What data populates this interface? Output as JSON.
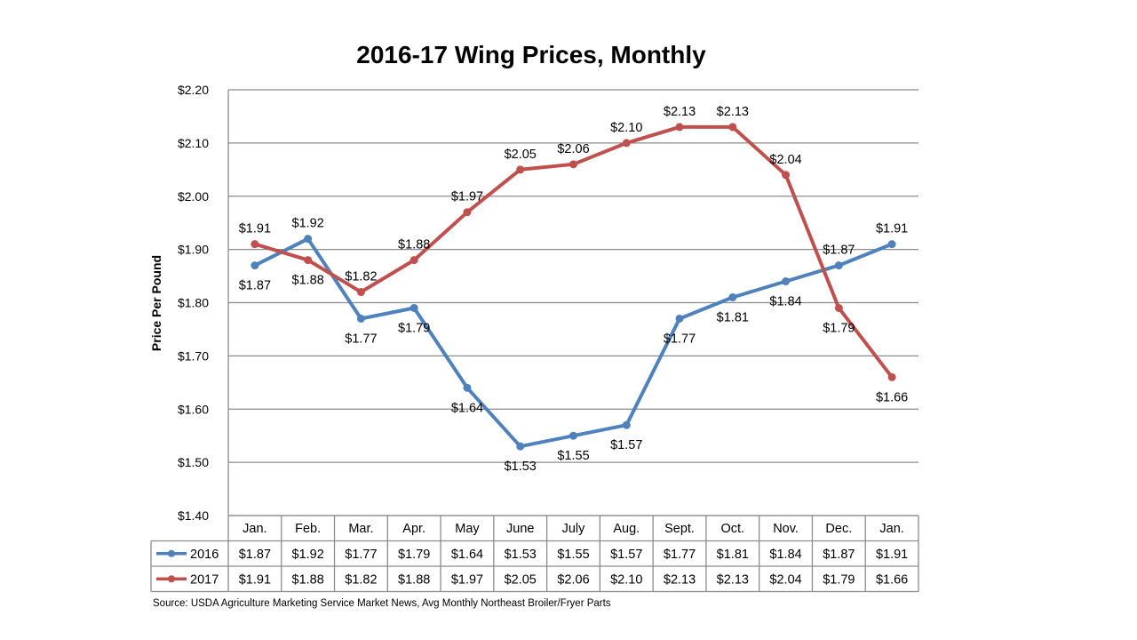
{
  "chart_data": {
    "type": "line",
    "title": "2016-17 Wing Prices, Monthly",
    "ylabel": "Price Per Pound",
    "xlabel": "",
    "ylim": [
      1.4,
      2.2
    ],
    "yticks": [
      "$2.20",
      "$2.10",
      "$2.00",
      "$1.90",
      "$1.80",
      "$1.70",
      "$1.60",
      "$1.50",
      "$1.40"
    ],
    "ytick_values": [
      2.2,
      2.1,
      2.0,
      1.9,
      1.8,
      1.7,
      1.6,
      1.5,
      1.4
    ],
    "categories": [
      "Jan.",
      "Feb.",
      "Mar.",
      "Apr.",
      "May",
      "June",
      "July",
      "Aug.",
      "Sept.",
      "Oct.",
      "Nov.",
      "Dec.",
      "Jan."
    ],
    "grid": true,
    "legend": "data-table",
    "series": [
      {
        "name": "2016",
        "color": "#4F81BD",
        "values": [
          1.87,
          1.92,
          1.77,
          1.79,
          1.64,
          1.53,
          1.55,
          1.57,
          1.77,
          1.81,
          1.84,
          1.87,
          1.91
        ],
        "labels": [
          "$1.87",
          "$1.92",
          "$1.77",
          "$1.79",
          "$1.64",
          "$1.53",
          "$1.55",
          "$1.57",
          "$1.77",
          "$1.81",
          "$1.84",
          "$1.87",
          "$1.91"
        ]
      },
      {
        "name": "2017",
        "color": "#C0504D",
        "values": [
          1.91,
          1.88,
          1.82,
          1.88,
          1.97,
          2.05,
          2.06,
          2.1,
          2.13,
          2.13,
          2.04,
          1.79,
          1.66
        ],
        "labels": [
          "$1.91",
          "$1.88",
          "$1.82",
          "$1.88",
          "$1.97",
          "$2.05",
          "$2.06",
          "$2.10",
          "$2.13",
          "$2.13",
          "$2.04",
          "$1.79",
          "$1.66"
        ]
      }
    ]
  },
  "source_note": "Source:  USDA Agriculture Marketing Service Market News, Avg Monthly Northeast Broiler/Fryer Parts"
}
